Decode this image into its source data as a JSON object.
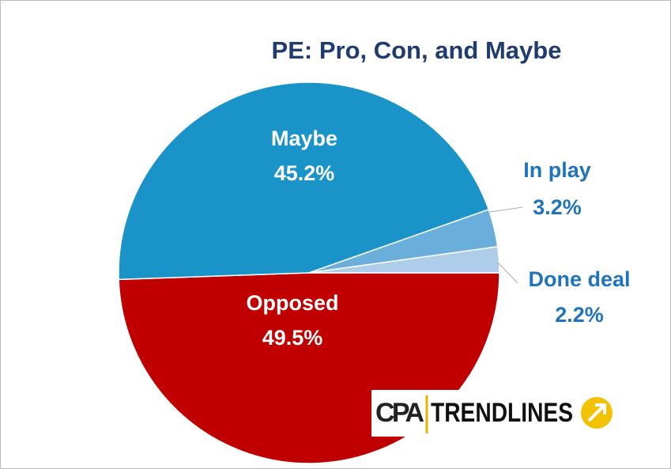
{
  "chart_data": {
    "type": "pie",
    "title": "PE: Pro, Con, and Maybe",
    "categories": [
      "Opposed",
      "Maybe",
      "In play",
      "Done deal"
    ],
    "values": [
      49.5,
      45.2,
      3.2,
      2.2
    ],
    "value_labels": [
      "49.5%",
      "45.2%",
      "3.2%",
      "2.2%"
    ],
    "colors": [
      "#c00000",
      "#1a93c9",
      "#6aafdc",
      "#aecde9"
    ]
  },
  "logo": {
    "left": "CPA",
    "right": "TRENDLINES"
  }
}
